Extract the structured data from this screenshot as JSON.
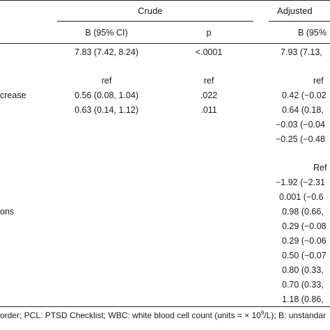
{
  "header": {
    "crude": "Crude",
    "adjusted": "Adjusted",
    "b_ci": "B (95% CI)",
    "p": "p",
    "b_ci_adj": "B (95%"
  },
  "rows": [
    {
      "label": "",
      "crude_b": "7.83 (7.42, 8.24)",
      "crude_p": "<.0001",
      "adj_b": "7.93 (7.13,"
    },
    {
      "label": "",
      "crude_b": "ref",
      "crude_p": "ref",
      "adj_b": "ref"
    },
    {
      "label": "crease",
      "crude_b": "0.56 (0.08, 1.04)",
      "crude_p": ".022",
      "adj_b": "0.42 (−0.02"
    },
    {
      "label": "",
      "crude_b": "0.63 (0.14, 1.12)",
      "crude_p": ".011",
      "adj_b": "0.64 (0.18,"
    },
    {
      "label": "",
      "crude_b": "",
      "crude_p": "",
      "adj_b": "−0.03 (−0.04"
    },
    {
      "label": "",
      "crude_b": "",
      "crude_p": "",
      "adj_b": "−0.25 (−0.48"
    },
    {
      "label": "",
      "crude_b": "",
      "crude_p": "",
      "adj_b": "Ref"
    },
    {
      "label": "",
      "crude_b": "",
      "crude_p": "",
      "adj_b": "−1.92 (−2.31"
    },
    {
      "label": "",
      "crude_b": "",
      "crude_p": "",
      "adj_b": "0.001 (−0.6"
    },
    {
      "label": "ons",
      "crude_b": "",
      "crude_p": "",
      "adj_b": "0.98 (0.66,"
    },
    {
      "label": "",
      "crude_b": "",
      "crude_p": "",
      "adj_b": "0.29 (−0.08"
    },
    {
      "label": "",
      "crude_b": "",
      "crude_p": "",
      "adj_b": "0.29 (−0.06"
    },
    {
      "label": "",
      "crude_b": "",
      "crude_p": "",
      "adj_b": "0.50 (−0.07"
    },
    {
      "label": "",
      "crude_b": "",
      "crude_p": "",
      "adj_b": "0.80 (0.33,"
    },
    {
      "label": "",
      "crude_b": "",
      "crude_p": "",
      "adj_b": "0.70 (0.33,"
    },
    {
      "label": "",
      "crude_b": "",
      "crude_p": "",
      "adj_b": "1.18 (0.86,"
    }
  ],
  "footnote": {
    "before_sup": "order; PCL: PTSD Checklist; WBC: white blood cell count (units = × 10",
    "sup": "9",
    "after_sup": "/L); B: unstandar"
  }
}
